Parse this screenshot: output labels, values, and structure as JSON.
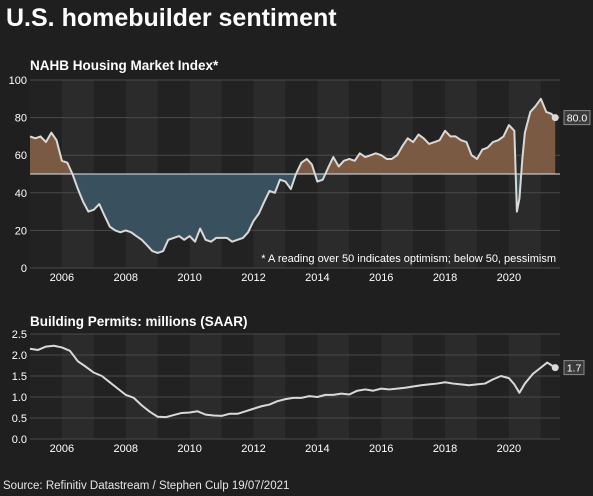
{
  "title": "U.S. homebuilder sentiment",
  "source": "Source: Refinitiv Datastream / Stephen Culp 19/07/2021",
  "colors": {
    "background": "#1f1f1f",
    "band_a": "#2b2b2b",
    "band_b": "#222222",
    "above_fill": "#7a5a42",
    "below_fill": "#39505f",
    "line": "#d9d9d9"
  },
  "chart_data": [
    {
      "type": "area",
      "title": "NAHB Housing Market Index*",
      "xlabel": "",
      "ylabel": "",
      "x_ticks": [
        "2006",
        "2008",
        "2010",
        "2012",
        "2014",
        "2016",
        "2018",
        "2020"
      ],
      "y_ticks": [
        "0",
        "20",
        "40",
        "60",
        "80",
        "100"
      ],
      "xlim": [
        2005.0,
        2021.6
      ],
      "ylim": [
        0,
        100
      ],
      "baseline": 50,
      "grid": true,
      "annotation": "* A reading over 50 indicates optimism; below 50, pessimism",
      "last_label": "80.0",
      "series": [
        {
          "x": [
            2005.0,
            2005.17,
            2005.33,
            2005.5,
            2005.67,
            2005.83,
            2006.0,
            2006.17,
            2006.33,
            2006.5,
            2006.67,
            2006.83,
            2007.0,
            2007.17,
            2007.33,
            2007.5,
            2007.67,
            2007.83,
            2008.0,
            2008.17,
            2008.33,
            2008.5,
            2008.67,
            2008.83,
            2009.0,
            2009.17,
            2009.33,
            2009.5,
            2009.67,
            2009.83,
            2010.0,
            2010.17,
            2010.33,
            2010.5,
            2010.67,
            2010.83,
            2011.0,
            2011.17,
            2011.33,
            2011.5,
            2011.67,
            2011.83,
            2012.0,
            2012.17,
            2012.33,
            2012.5,
            2012.67,
            2012.83,
            2013.0,
            2013.17,
            2013.33,
            2013.5,
            2013.67,
            2013.83,
            2014.0,
            2014.17,
            2014.33,
            2014.5,
            2014.67,
            2014.83,
            2015.0,
            2015.17,
            2015.33,
            2015.5,
            2015.67,
            2015.83,
            2016.0,
            2016.17,
            2016.33,
            2016.5,
            2016.67,
            2016.83,
            2017.0,
            2017.17,
            2017.33,
            2017.5,
            2017.67,
            2017.83,
            2018.0,
            2018.17,
            2018.33,
            2018.5,
            2018.67,
            2018.83,
            2019.0,
            2019.17,
            2019.33,
            2019.5,
            2019.67,
            2019.83,
            2020.0,
            2020.17,
            2020.25,
            2020.33,
            2020.42,
            2020.5,
            2020.67,
            2020.83,
            2021.0,
            2021.17,
            2021.33,
            2021.45
          ],
          "values": [
            70,
            69,
            70,
            67,
            72,
            68,
            57,
            56,
            50,
            42,
            35,
            30,
            31,
            34,
            28,
            22,
            20,
            19,
            20,
            19,
            17,
            15,
            12,
            9,
            8,
            9,
            15,
            16,
            17,
            15,
            17,
            14,
            21,
            15,
            14,
            16,
            16,
            16,
            14,
            15,
            16,
            19,
            25,
            29,
            35,
            41,
            40,
            47,
            46,
            42,
            50,
            56,
            58,
            55,
            46,
            47,
            53,
            59,
            54,
            57,
            58,
            57,
            61,
            59,
            60,
            61,
            60,
            58,
            58,
            60,
            65,
            69,
            67,
            71,
            69,
            66,
            67,
            68,
            73,
            70,
            70,
            68,
            67,
            60,
            58,
            63,
            64,
            67,
            68,
            70,
            76,
            73,
            30,
            37,
            58,
            72,
            83,
            86,
            90,
            83,
            82,
            80
          ]
        }
      ]
    },
    {
      "type": "line",
      "title": "Building Permits: millions (SAAR)",
      "xlabel": "",
      "ylabel": "",
      "x_ticks": [
        "2006",
        "2008",
        "2010",
        "2012",
        "2014",
        "2016",
        "2018",
        "2020"
      ],
      "y_ticks": [
        "0.0",
        "0.5",
        "1.0",
        "1.5",
        "2.0",
        "2.5"
      ],
      "xlim": [
        2005.0,
        2021.6
      ],
      "ylim": [
        0,
        2.5
      ],
      "grid": true,
      "last_label": "1.7",
      "series": [
        {
          "x": [
            2005.0,
            2005.25,
            2005.5,
            2005.75,
            2006.0,
            2006.25,
            2006.5,
            2006.75,
            2007.0,
            2007.25,
            2007.5,
            2007.75,
            2008.0,
            2008.25,
            2008.5,
            2008.75,
            2009.0,
            2009.25,
            2009.5,
            2009.75,
            2010.0,
            2010.25,
            2010.5,
            2010.75,
            2011.0,
            2011.25,
            2011.5,
            2011.75,
            2012.0,
            2012.25,
            2012.5,
            2012.75,
            2013.0,
            2013.25,
            2013.5,
            2013.75,
            2014.0,
            2014.25,
            2014.5,
            2014.75,
            2015.0,
            2015.25,
            2015.5,
            2015.75,
            2016.0,
            2016.25,
            2016.5,
            2016.75,
            2017.0,
            2017.25,
            2017.5,
            2017.75,
            2018.0,
            2018.25,
            2018.5,
            2018.75,
            2019.0,
            2019.25,
            2019.5,
            2019.75,
            2020.0,
            2020.17,
            2020.33,
            2020.5,
            2020.75,
            2021.0,
            2021.2,
            2021.45
          ],
          "values": [
            2.15,
            2.12,
            2.2,
            2.22,
            2.18,
            2.1,
            1.85,
            1.72,
            1.58,
            1.5,
            1.35,
            1.2,
            1.05,
            0.98,
            0.8,
            0.65,
            0.53,
            0.52,
            0.57,
            0.62,
            0.63,
            0.66,
            0.58,
            0.56,
            0.55,
            0.6,
            0.6,
            0.66,
            0.72,
            0.78,
            0.82,
            0.9,
            0.95,
            0.98,
            0.98,
            1.02,
            1.0,
            1.05,
            1.05,
            1.08,
            1.06,
            1.15,
            1.18,
            1.15,
            1.2,
            1.18,
            1.2,
            1.22,
            1.25,
            1.28,
            1.3,
            1.32,
            1.35,
            1.32,
            1.3,
            1.28,
            1.3,
            1.32,
            1.42,
            1.5,
            1.45,
            1.3,
            1.1,
            1.32,
            1.55,
            1.7,
            1.82,
            1.7
          ]
        }
      ]
    }
  ]
}
